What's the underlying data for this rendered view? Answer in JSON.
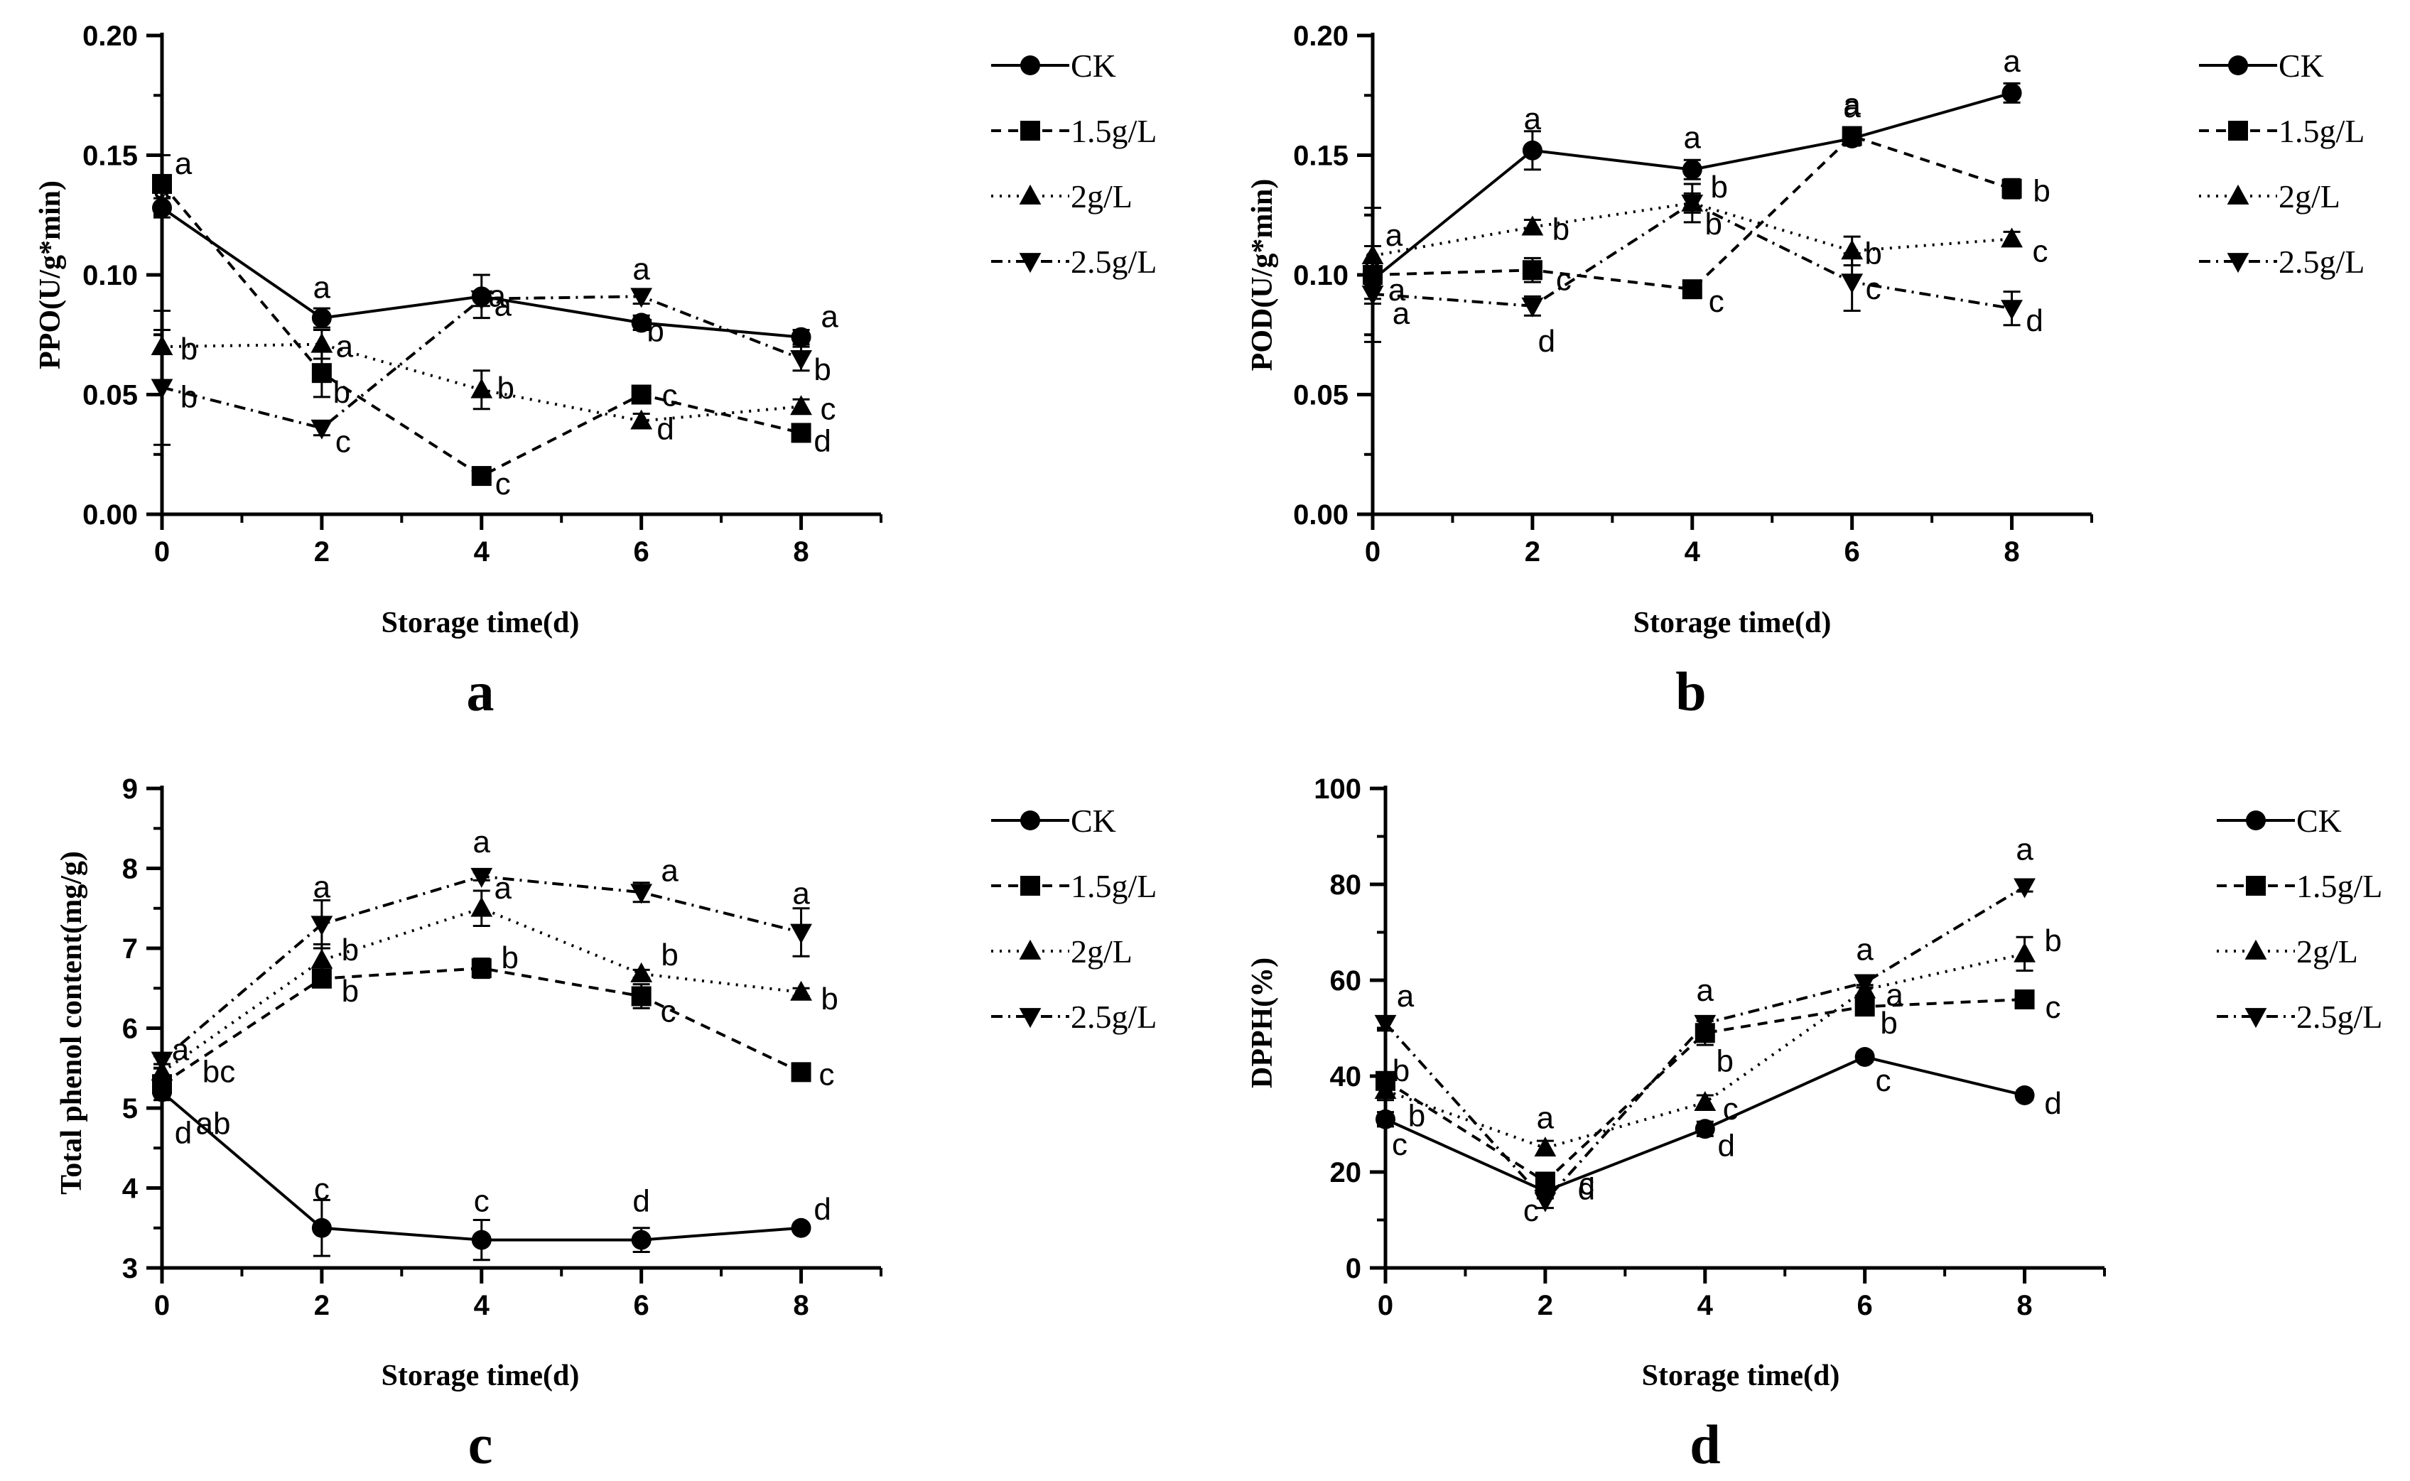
{
  "chart_data": [
    {
      "type": "line",
      "panel_label": "a",
      "ylabel": "PPO(U/g*min)",
      "xlabel": "Storage time(d)",
      "x": [
        0,
        2,
        4,
        6,
        8
      ],
      "xlim": [
        0,
        9
      ],
      "ylim": [
        0,
        0.2
      ],
      "xticks": [
        0,
        2,
        4,
        6,
        8
      ],
      "yticks": [
        0.0,
        0.05,
        0.1,
        0.15,
        0.2
      ],
      "ytick_labels": [
        "0.00",
        "0.05",
        "0.10",
        "0.15",
        "0.20"
      ],
      "series": [
        {
          "name": "CK",
          "marker": "circle",
          "line": "solid",
          "values": [
            0.128,
            0.082,
            0.091,
            0.08,
            0.074
          ],
          "errors": [
            0.004,
            0.004,
            0.009,
            0.003,
            0.003
          ],
          "letters": [
            "a",
            "a",
            "a",
            "b",
            "a"
          ]
        },
        {
          "name": "1.5g/L",
          "marker": "square",
          "line": "dashed",
          "values": [
            0.138,
            0.059,
            0.016,
            0.05,
            0.034
          ],
          "errors": [
            0.012,
            0.01,
            0.002,
            0.003,
            0.002
          ],
          "letters": [
            "a",
            "b",
            "c",
            "c",
            "d"
          ]
        },
        {
          "name": "2g/L",
          "marker": "triangle-up",
          "line": "dotted",
          "values": [
            0.07,
            0.071,
            0.052,
            0.039,
            0.045
          ],
          "errors": [
            0.015,
            0.006,
            0.008,
            0.003,
            0.003
          ],
          "letters": [
            "b",
            "a",
            "b",
            "d",
            "c"
          ]
        },
        {
          "name": "2.5g/L",
          "marker": "triangle-down",
          "line": "dashdot",
          "values": [
            0.053,
            0.036,
            0.09,
            0.091,
            0.065
          ],
          "errors": [
            0.024,
            0.003,
            0.003,
            0.003,
            0.005
          ],
          "letters": [
            "b",
            "c",
            "a",
            "a",
            "b"
          ]
        }
      ]
    },
    {
      "type": "line",
      "panel_label": "b",
      "ylabel": "POD(U/g*min)",
      "xlabel": "Storage time(d)",
      "x": [
        0,
        2,
        4,
        6,
        8
      ],
      "xlim": [
        0,
        9
      ],
      "ylim": [
        0,
        0.2
      ],
      "xticks": [
        0,
        2,
        4,
        6,
        8
      ],
      "yticks": [
        0.0,
        0.05,
        0.1,
        0.15,
        0.2
      ],
      "ytick_labels": [
        "0.00",
        "0.05",
        "0.10",
        "0.15",
        "0.20"
      ],
      "series": [
        {
          "name": "CK",
          "marker": "circle",
          "line": "solid",
          "values": [
            0.098,
            0.152,
            0.144,
            0.157,
            0.176
          ],
          "errors": [
            0.008,
            0.008,
            0.004,
            0.003,
            0.004
          ],
          "letters": [
            "a",
            "a",
            "a",
            "a",
            "a"
          ]
        },
        {
          "name": "1.5g/L",
          "marker": "square",
          "line": "dashed",
          "values": [
            0.1,
            0.102,
            0.094,
            0.158,
            0.136
          ],
          "errors": [
            0.006,
            0.005,
            0.003,
            0.002,
            0.004
          ],
          "letters": [
            "a",
            "c",
            "c",
            "a",
            "b"
          ]
        },
        {
          "name": "2g/L",
          "marker": "triangle-up",
          "line": "dotted",
          "values": [
            0.108,
            0.12,
            0.13,
            0.11,
            0.115
          ],
          "errors": [
            0.02,
            0.003,
            0.004,
            0.006,
            0.003
          ],
          "letters": [
            "a",
            "b",
            "b",
            "b",
            "c"
          ]
        },
        {
          "name": "2.5g/L",
          "marker": "triangle-down",
          "line": "dashdot",
          "values": [
            0.092,
            0.087,
            0.13,
            0.097,
            0.086
          ],
          "errors": [
            0.02,
            0.004,
            0.008,
            0.012,
            0.007
          ],
          "letters": [
            "a",
            "d",
            "b",
            "c",
            "d"
          ]
        }
      ]
    },
    {
      "type": "line",
      "panel_label": "c",
      "ylabel": "Total phenol content(mg/g)",
      "xlabel": "Storage time(d)",
      "x": [
        0,
        2,
        4,
        6,
        8
      ],
      "xlim": [
        0,
        9
      ],
      "ylim": [
        3,
        9
      ],
      "xticks": [
        0,
        2,
        4,
        6,
        8
      ],
      "yticks": [
        3,
        4,
        5,
        6,
        7,
        8,
        9
      ],
      "ytick_labels": [
        "3",
        "4",
        "5",
        "6",
        "7",
        "8",
        "9"
      ],
      "series": [
        {
          "name": "CK",
          "marker": "circle",
          "line": "solid",
          "values": [
            5.2,
            3.5,
            3.35,
            3.35,
            3.5
          ],
          "errors": [
            0.1,
            0.35,
            0.25,
            0.15,
            0.05
          ],
          "letters": [
            "d",
            "c",
            "c",
            "d",
            "d"
          ]
        },
        {
          "name": "1.5g/L",
          "marker": "square",
          "line": "dashed",
          "values": [
            5.3,
            6.62,
            6.75,
            6.4,
            5.45
          ],
          "errors": [
            0.1,
            0.1,
            0.12,
            0.15,
            0.05
          ],
          "letters": [
            "ab",
            "b",
            "b",
            "c",
            "c"
          ]
        },
        {
          "name": "2g/L",
          "marker": "triangle-up",
          "line": "dotted",
          "values": [
            5.45,
            6.85,
            7.5,
            6.68,
            6.45
          ],
          "errors": [
            0.1,
            0.2,
            0.22,
            0.05,
            0.05
          ],
          "letters": [
            "bc",
            "b",
            "a",
            "b",
            "b"
          ]
        },
        {
          "name": "2.5g/L",
          "marker": "triangle-down",
          "line": "dashdot",
          "values": [
            5.6,
            7.3,
            7.9,
            7.7,
            7.2
          ],
          "errors": [
            0.05,
            0.3,
            0.05,
            0.12,
            0.3
          ],
          "letters": [
            "a",
            "a",
            "a",
            "a",
            "a"
          ]
        }
      ]
    },
    {
      "type": "line",
      "panel_label": "d",
      "ylabel": "DPPH(%)",
      "xlabel": "Storage time(d)",
      "x": [
        0,
        2,
        4,
        6,
        8
      ],
      "xlim": [
        0,
        9
      ],
      "ylim": [
        0,
        100
      ],
      "xticks": [
        0,
        2,
        4,
        6,
        8
      ],
      "yticks": [
        0,
        20,
        40,
        60,
        80,
        100
      ],
      "ytick_labels": [
        "0",
        "20",
        "40",
        "60",
        "80",
        "100"
      ],
      "series": [
        {
          "name": "CK",
          "marker": "circle",
          "line": "solid",
          "values": [
            31,
            16,
            29,
            44,
            36
          ],
          "errors": [
            1.5,
            1.5,
            1.5,
            1.0,
            1.0
          ],
          "letters": [
            "c",
            "c",
            "d",
            "c",
            "d"
          ]
        },
        {
          "name": "1.5g/L",
          "marker": "square",
          "line": "dashed",
          "values": [
            39,
            18,
            49,
            54.5,
            56
          ],
          "errors": [
            1.5,
            1.0,
            2.5,
            1.5,
            1.5
          ],
          "letters": [
            "b",
            "c",
            "b",
            "b",
            "c"
          ]
        },
        {
          "name": "2g/L",
          "marker": "triangle-up",
          "line": "dotted",
          "values": [
            37,
            25,
            34.5,
            58,
            65.5
          ],
          "errors": [
            2.0,
            1.5,
            1.5,
            1.0,
            3.5
          ],
          "letters": [
            "b",
            "a",
            "c",
            "a",
            "b"
          ]
        },
        {
          "name": "2.5g/L",
          "marker": "triangle-down",
          "line": "dashdot",
          "values": [
            51,
            14,
            51,
            59.5,
            79.5
          ],
          "errors": [
            1.5,
            1.5,
            1.5,
            1.0,
            1.0
          ],
          "letters": [
            "a",
            "d",
            "a",
            "a",
            "a"
          ]
        }
      ]
    }
  ]
}
